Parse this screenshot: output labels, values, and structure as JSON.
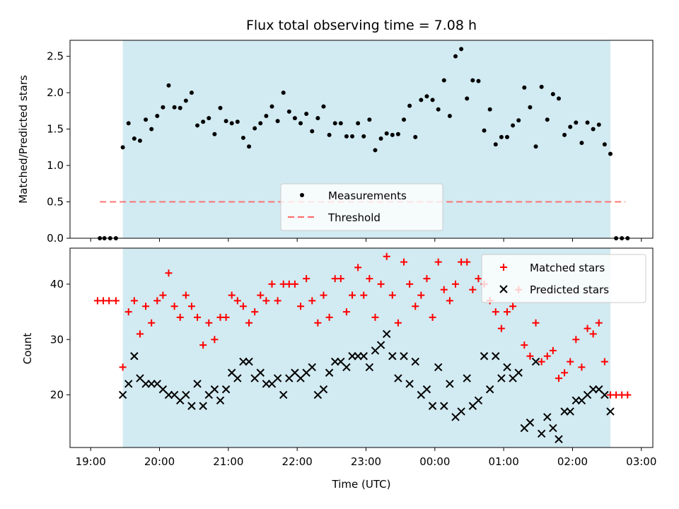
{
  "chart_data": [
    {
      "type": "scatter",
      "title": "Flux total observing time = 7.08 h",
      "xlabel": "",
      "ylabel": "Matched/Predicted stars",
      "xlim": [
        "18:42",
        "03:10"
      ],
      "ylim": [
        0,
        2.72
      ],
      "yticks": [
        "0.0",
        "0.5",
        "1.0",
        "1.5",
        "2.0",
        "2.5"
      ],
      "shaded_region": {
        "start": "19:28",
        "end": "02:33",
        "color": "#add8e6"
      },
      "threshold": {
        "name": "Threshold",
        "value": 0.5,
        "x_start": "19:08",
        "x_end": "02:46",
        "color": "#ff6666"
      },
      "legend": {
        "position": "lower center",
        "entries": [
          "Measurements",
          "Threshold"
        ]
      },
      "series": [
        {
          "name": "Measurements",
          "x": [
            "19:08",
            "19:12",
            "19:17",
            "19:22",
            "19:28",
            "19:33",
            "19:38",
            "19:43",
            "19:48",
            "19:53",
            "19:58",
            "20:03",
            "20:08",
            "20:13",
            "20:18",
            "20:23",
            "20:28",
            "20:33",
            "20:38",
            "20:43",
            "20:48",
            "20:53",
            "20:58",
            "21:03",
            "21:08",
            "21:13",
            "21:18",
            "21:23",
            "21:28",
            "21:33",
            "21:38",
            "21:43",
            "21:48",
            "21:53",
            "21:58",
            "22:03",
            "22:08",
            "22:13",
            "22:18",
            "22:23",
            "22:28",
            "22:33",
            "22:38",
            "22:43",
            "22:48",
            "22:53",
            "22:58",
            "23:03",
            "23:08",
            "23:13",
            "23:18",
            "23:23",
            "23:28",
            "23:33",
            "23:38",
            "23:43",
            "23:48",
            "23:53",
            "23:58",
            "00:03",
            "00:08",
            "00:13",
            "00:18",
            "00:23",
            "00:28",
            "00:33",
            "00:38",
            "00:43",
            "00:48",
            "00:53",
            "00:58",
            "01:03",
            "01:08",
            "01:13",
            "01:18",
            "01:23",
            "01:28",
            "01:33",
            "01:38",
            "01:43",
            "01:48",
            "01:53",
            "01:58",
            "02:03",
            "02:08",
            "02:13",
            "02:18",
            "02:23",
            "02:28",
            "02:33",
            "02:38",
            "02:43",
            "02:48"
          ],
          "y": [
            0,
            0,
            0,
            0,
            1.25,
            1.58,
            1.37,
            1.34,
            1.63,
            1.5,
            1.68,
            1.8,
            2.1,
            1.8,
            1.79,
            1.89,
            2.0,
            1.55,
            1.6,
            1.65,
            1.43,
            1.79,
            1.61,
            1.58,
            1.6,
            1.38,
            1.26,
            1.51,
            1.58,
            1.68,
            1.81,
            1.61,
            2.0,
            1.74,
            1.65,
            1.58,
            1.71,
            1.47,
            1.65,
            1.81,
            1.42,
            1.58,
            1.58,
            1.4,
            1.4,
            1.58,
            1.4,
            1.63,
            1.21,
            1.37,
            1.44,
            1.42,
            1.43,
            1.63,
            1.82,
            1.39,
            1.9,
            1.95,
            1.9,
            1.77,
            2.17,
            1.68,
            2.5,
            2.6,
            1.92,
            2.17,
            2.16,
            1.48,
            1.77,
            1.29,
            1.39,
            1.39,
            1.55,
            1.62,
            2.07,
            1.8,
            1.26,
            2.08,
            1.63,
            1.98,
            1.92,
            1.42,
            1.53,
            1.59,
            1.31,
            1.59,
            1.5,
            1.56,
            1.29,
            1.16,
            0,
            0,
            0
          ],
          "color": "#000000"
        }
      ]
    },
    {
      "type": "scatter",
      "title": "",
      "xlabel": "Time (UTC)",
      "ylabel": "Count",
      "xlim": [
        "18:42",
        "03:10"
      ],
      "ylim": [
        10.5,
        46.5
      ],
      "yticks": [
        "20",
        "30",
        "40"
      ],
      "xticks": [
        "19:00",
        "20:00",
        "21:00",
        "22:00",
        "23:00",
        "00:00",
        "01:00",
        "02:00",
        "03:00"
      ],
      "shaded_region": {
        "start": "19:28",
        "end": "02:33",
        "color": "#add8e6"
      },
      "legend": {
        "position": "upper right",
        "entries": [
          "Matched stars",
          "Predicted stars"
        ]
      },
      "series": [
        {
          "name": "Matched stars",
          "marker": "plus",
          "color": "#ff0000",
          "x": [
            "19:06",
            "19:11",
            "19:16",
            "19:22",
            "19:28",
            "19:33",
            "19:38",
            "19:43",
            "19:48",
            "19:53",
            "19:58",
            "20:03",
            "20:08",
            "20:13",
            "20:18",
            "20:23",
            "20:28",
            "20:33",
            "20:38",
            "20:43",
            "20:48",
            "20:53",
            "20:58",
            "21:03",
            "21:08",
            "21:13",
            "21:18",
            "21:23",
            "21:28",
            "21:33",
            "21:38",
            "21:43",
            "21:48",
            "21:53",
            "21:58",
            "22:03",
            "22:08",
            "22:13",
            "22:18",
            "22:23",
            "22:28",
            "22:33",
            "22:38",
            "22:43",
            "22:48",
            "22:53",
            "22:58",
            "23:03",
            "23:08",
            "23:13",
            "23:18",
            "23:23",
            "23:28",
            "23:33",
            "23:38",
            "23:43",
            "23:48",
            "23:53",
            "23:58",
            "00:03",
            "00:08",
            "00:13",
            "00:18",
            "00:23",
            "00:28",
            "00:33",
            "00:38",
            "00:43",
            "00:48",
            "00:53",
            "00:58",
            "01:03",
            "01:08",
            "01:13",
            "01:18",
            "01:23",
            "01:28",
            "01:33",
            "01:38",
            "01:43",
            "01:48",
            "01:53",
            "01:58",
            "02:03",
            "02:08",
            "02:13",
            "02:18",
            "02:23",
            "02:28",
            "02:33",
            "02:38",
            "02:43",
            "02:48"
          ],
          "y": [
            37,
            37,
            37,
            37,
            25,
            35,
            37,
            31,
            36,
            33,
            37,
            38,
            42,
            36,
            34,
            38,
            36,
            34,
            29,
            33,
            30,
            34,
            34,
            38,
            37,
            36,
            33,
            35,
            38,
            37,
            40,
            37,
            40,
            40,
            40,
            36,
            41,
            37,
            33,
            38,
            34,
            41,
            41,
            35,
            38,
            43,
            38,
            41,
            34,
            40,
            45,
            38,
            33,
            44,
            40,
            36,
            38,
            41,
            34,
            44,
            39,
            37,
            40,
            44,
            44,
            39,
            41,
            40,
            37,
            35,
            32,
            35,
            36,
            39,
            29,
            27,
            33,
            26,
            27,
            28,
            23,
            24,
            26,
            30,
            25,
            32,
            31,
            33,
            26,
            20,
            20,
            20,
            20
          ]
        },
        {
          "name": "Predicted stars",
          "marker": "x",
          "color": "#000000",
          "x": [
            "19:28",
            "19:33",
            "19:38",
            "19:43",
            "19:48",
            "19:53",
            "19:58",
            "20:03",
            "20:08",
            "20:13",
            "20:18",
            "20:23",
            "20:28",
            "20:33",
            "20:38",
            "20:43",
            "20:48",
            "20:53",
            "20:58",
            "21:03",
            "21:08",
            "21:13",
            "21:18",
            "21:23",
            "21:28",
            "21:33",
            "21:38",
            "21:43",
            "21:48",
            "21:53",
            "21:58",
            "22:03",
            "22:08",
            "22:13",
            "22:18",
            "22:23",
            "22:28",
            "22:33",
            "22:38",
            "22:43",
            "22:48",
            "22:53",
            "22:58",
            "23:03",
            "23:08",
            "23:13",
            "23:18",
            "23:23",
            "23:28",
            "23:33",
            "23:38",
            "23:43",
            "23:48",
            "23:53",
            "23:58",
            "00:03",
            "00:08",
            "00:13",
            "00:18",
            "00:23",
            "00:28",
            "00:33",
            "00:38",
            "00:43",
            "00:48",
            "00:53",
            "00:58",
            "01:03",
            "01:08",
            "01:13",
            "01:18",
            "01:23",
            "01:28",
            "01:33",
            "01:38",
            "01:43",
            "01:48",
            "01:53",
            "01:58",
            "02:03",
            "02:08",
            "02:13",
            "02:18",
            "02:23",
            "02:28",
            "02:33"
          ],
          "y": [
            20,
            22,
            27,
            23,
            22,
            22,
            22,
            21,
            20,
            20,
            19,
            20,
            18,
            22,
            18,
            20,
            21,
            19,
            21,
            24,
            23,
            26,
            26,
            23,
            24,
            22,
            22,
            23,
            20,
            23,
            24,
            23,
            24,
            25,
            20,
            21,
            24,
            26,
            26,
            25,
            27,
            27,
            27,
            25,
            28,
            29,
            31,
            27,
            23,
            27,
            22,
            26,
            20,
            21,
            18,
            25,
            18,
            22,
            16,
            17,
            23,
            18,
            19,
            27,
            21,
            27,
            23,
            25,
            23,
            24,
            14,
            15,
            26,
            13,
            16,
            14,
            12,
            17,
            17,
            19,
            19,
            20,
            21,
            21,
            20,
            17
          ]
        }
      ]
    }
  ]
}
